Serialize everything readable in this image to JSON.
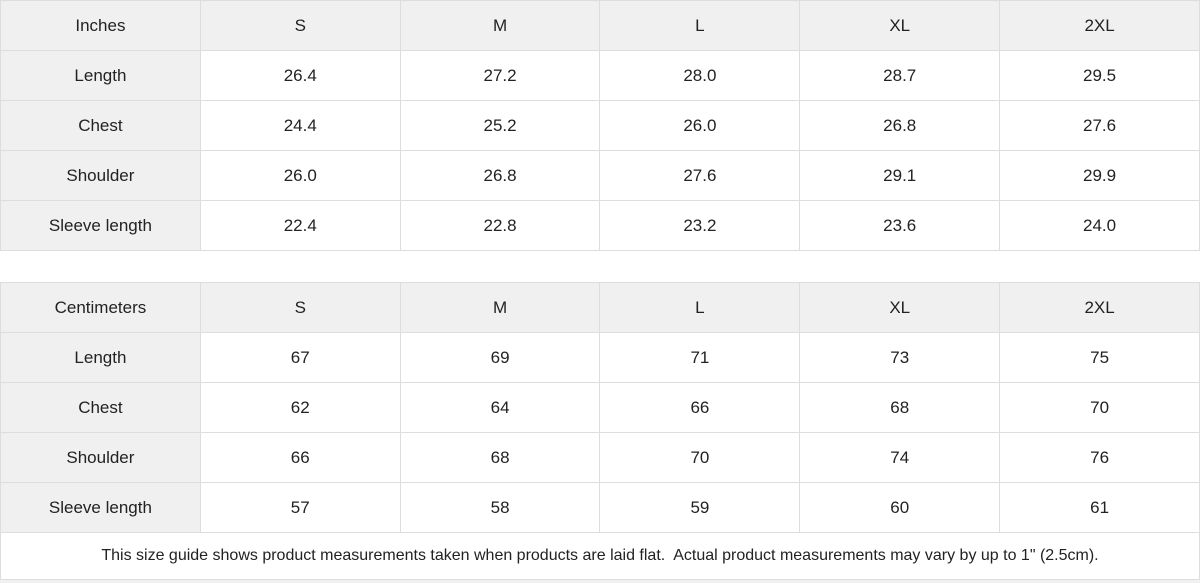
{
  "colors": {
    "header_bg": "#f0f0f0",
    "border": "#dddddd",
    "text": "#222222",
    "cell_bg": "#ffffff"
  },
  "inches_table": {
    "unit_label": "Inches",
    "columns": [
      "S",
      "M",
      "L",
      "XL",
      "2XL"
    ],
    "rows": [
      {
        "label": "Length",
        "values": [
          "26.4",
          "27.2",
          "28.0",
          "28.7",
          "29.5"
        ]
      },
      {
        "label": "Chest",
        "values": [
          "24.4",
          "25.2",
          "26.0",
          "26.8",
          "27.6"
        ]
      },
      {
        "label": "Shoulder",
        "values": [
          "26.0",
          "26.8",
          "27.6",
          "29.1",
          "29.9"
        ]
      },
      {
        "label": "Sleeve length",
        "values": [
          "22.4",
          "22.8",
          "23.2",
          "23.6",
          "24.0"
        ]
      }
    ]
  },
  "centimeters_table": {
    "unit_label": "Centimeters",
    "columns": [
      "S",
      "M",
      "L",
      "XL",
      "2XL"
    ],
    "rows": [
      {
        "label": "Length",
        "values": [
          "67",
          "69",
          "71",
          "73",
          "75"
        ]
      },
      {
        "label": "Chest",
        "values": [
          "62",
          "64",
          "66",
          "68",
          "70"
        ]
      },
      {
        "label": "Shoulder",
        "values": [
          "66",
          "68",
          "70",
          "74",
          "76"
        ]
      },
      {
        "label": "Sleeve length",
        "values": [
          "57",
          "58",
          "59",
          "60",
          "61"
        ]
      }
    ]
  },
  "footer": {
    "note": "This size guide shows product measurements taken when products are laid flat.  Actual product measurements may vary by up to 1\" (2.5cm)."
  }
}
